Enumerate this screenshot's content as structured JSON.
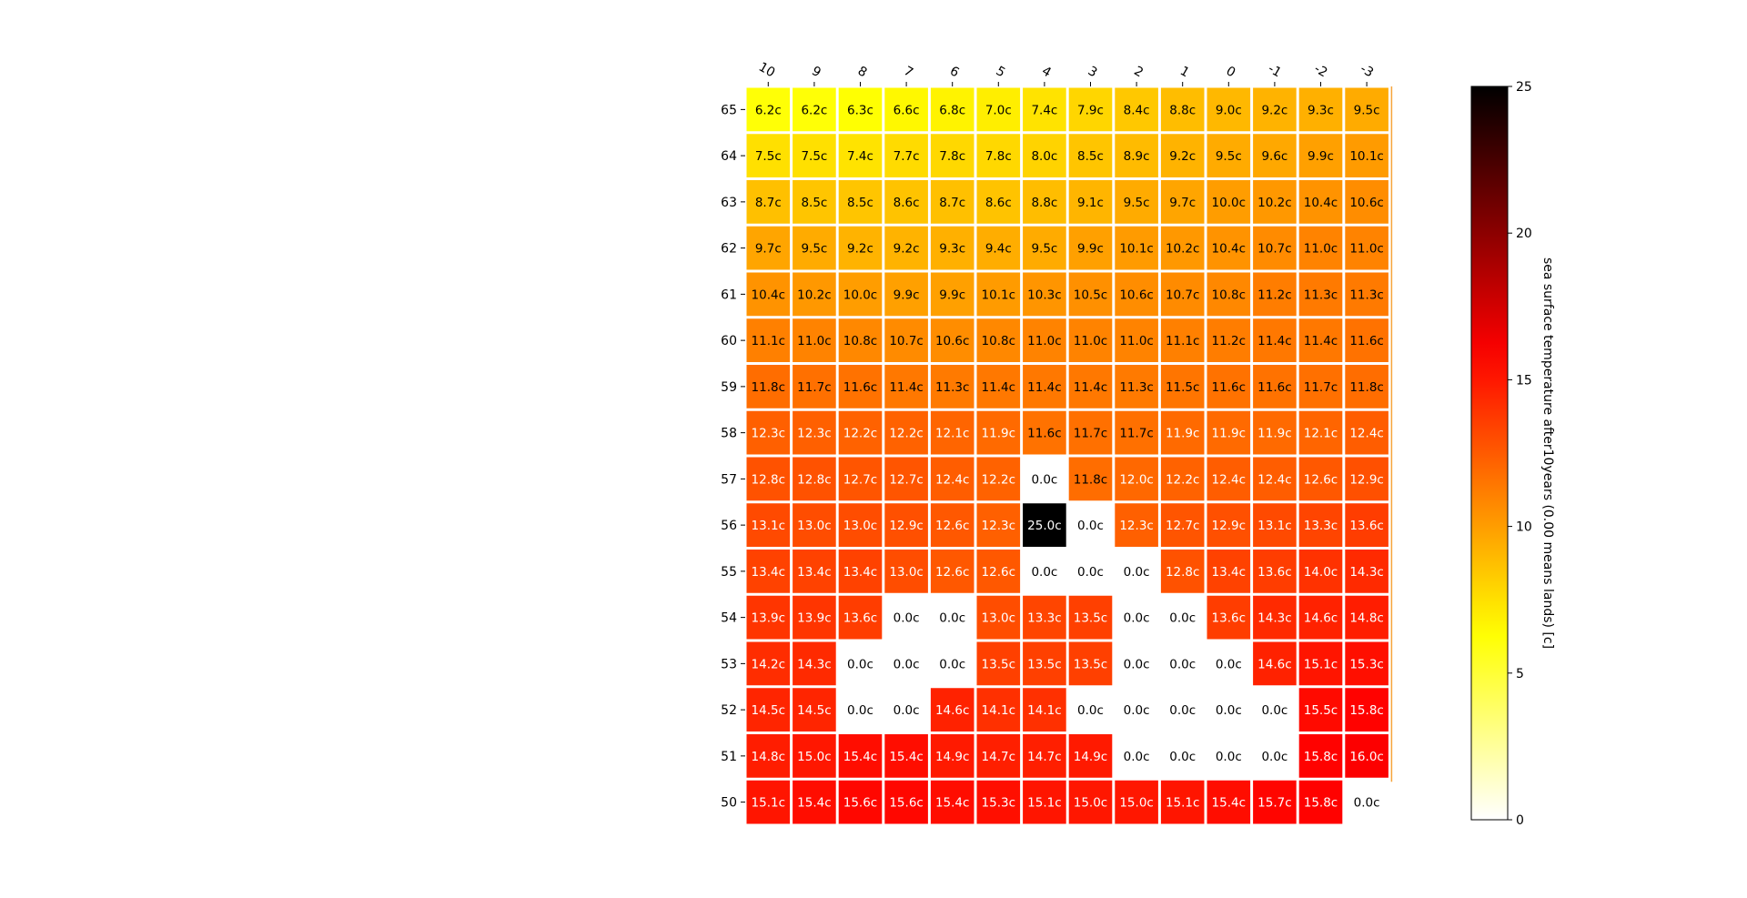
{
  "chart_data": {
    "type": "heatmap",
    "title": "",
    "x_categories": [
      "10",
      "9",
      "8",
      "7",
      "6",
      "5",
      "4",
      "3",
      "2",
      "1",
      "0",
      "-1",
      "-2",
      "-3"
    ],
    "y_categories": [
      "65",
      "64",
      "63",
      "62",
      "61",
      "60",
      "59",
      "58",
      "57",
      "56",
      "55",
      "54",
      "53",
      "52",
      "51",
      "50"
    ],
    "cell_suffix": "c",
    "values": [
      [
        6.2,
        6.2,
        6.3,
        6.6,
        6.8,
        7.0,
        7.4,
        7.9,
        8.4,
        8.8,
        9.0,
        9.2,
        9.3,
        9.5
      ],
      [
        7.5,
        7.5,
        7.4,
        7.7,
        7.8,
        7.8,
        8.0,
        8.5,
        8.9,
        9.2,
        9.5,
        9.6,
        9.9,
        10.1
      ],
      [
        8.7,
        8.5,
        8.5,
        8.6,
        8.7,
        8.6,
        8.8,
        9.1,
        9.5,
        9.7,
        10.0,
        10.2,
        10.4,
        10.6
      ],
      [
        9.7,
        9.5,
        9.2,
        9.2,
        9.3,
        9.4,
        9.5,
        9.9,
        10.1,
        10.2,
        10.4,
        10.7,
        11.0,
        11.0
      ],
      [
        10.4,
        10.2,
        10.0,
        9.9,
        9.9,
        10.1,
        10.3,
        10.5,
        10.6,
        10.7,
        10.8,
        11.2,
        11.3,
        11.3
      ],
      [
        11.1,
        11.0,
        10.8,
        10.7,
        10.6,
        10.8,
        11.0,
        11.0,
        11.0,
        11.1,
        11.2,
        11.4,
        11.4,
        11.6
      ],
      [
        11.8,
        11.7,
        11.6,
        11.4,
        11.3,
        11.4,
        11.4,
        11.4,
        11.3,
        11.5,
        11.6,
        11.6,
        11.7,
        11.8
      ],
      [
        12.3,
        12.3,
        12.2,
        12.2,
        12.1,
        11.9,
        11.6,
        11.7,
        11.7,
        11.9,
        11.9,
        11.9,
        12.1,
        12.4
      ],
      [
        12.8,
        12.8,
        12.7,
        12.7,
        12.4,
        12.2,
        -0.0,
        11.8,
        12.0,
        12.2,
        12.4,
        12.4,
        12.6,
        12.9
      ],
      [
        13.1,
        13.0,
        13.0,
        12.9,
        12.6,
        12.3,
        25.0,
        -0.0,
        12.3,
        12.7,
        12.9,
        13.1,
        13.3,
        13.6
      ],
      [
        13.4,
        13.4,
        13.4,
        13.0,
        12.6,
        12.6,
        -0.0,
        -0.0,
        -0.0,
        12.8,
        13.4,
        13.6,
        14.0,
        14.3
      ],
      [
        13.9,
        13.9,
        13.6,
        -0.0,
        -0.0,
        13.0,
        13.3,
        13.5,
        -0.0,
        -0.0,
        13.6,
        14.3,
        14.6,
        14.8
      ],
      [
        14.2,
        14.3,
        -0.0,
        -0.0,
        -0.0,
        13.5,
        13.5,
        13.5,
        -0.0,
        -0.0,
        -0.0,
        14.6,
        15.1,
        15.3
      ],
      [
        14.5,
        14.5,
        -0.0,
        -0.0,
        14.6,
        14.1,
        14.1,
        -0.0,
        -0.0,
        -0.0,
        -0.0,
        -0.0,
        15.5,
        15.8
      ],
      [
        14.8,
        15.0,
        15.4,
        15.4,
        14.9,
        14.7,
        14.7,
        14.9,
        -0.0,
        -0.0,
        -0.0,
        -0.0,
        15.8,
        16.0
      ],
      [
        15.1,
        15.4,
        15.6,
        15.6,
        15.4,
        15.3,
        15.1,
        15.0,
        15.0,
        15.1,
        15.4,
        15.7,
        15.8,
        -0.0
      ]
    ],
    "colorbar": {
      "label": "sea surface temperature after10years (0.00 means lands) [c]",
      "range": [
        0,
        25
      ],
      "ticks": [
        "0",
        "5",
        "10",
        "15",
        "20",
        "25"
      ],
      "colormap": "hot_r"
    },
    "cell_text_colors": {
      "dark": "#000000",
      "light": "#ffffff"
    }
  }
}
